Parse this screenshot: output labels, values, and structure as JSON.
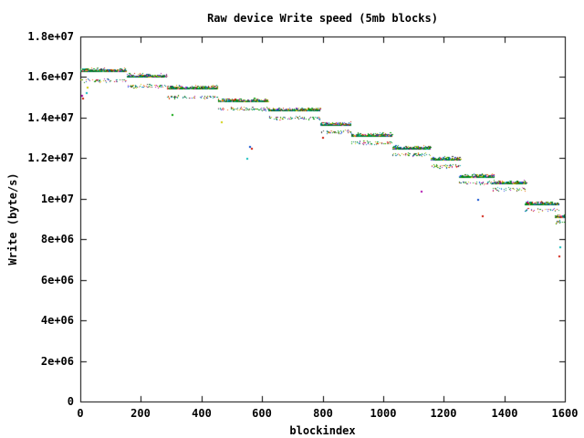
{
  "chart_data": {
    "type": "scatter",
    "title": "Raw device Write speed (5mb blocks)",
    "xlabel": "blockindex",
    "ylabel": "Write (byte/s)",
    "xlim": [
      0,
      1600
    ],
    "ylim": [
      0,
      18000000
    ],
    "grid": false,
    "legend": "none",
    "frame_color": "#000000",
    "band_core_color": "#007d3c",
    "point_colors": [
      "#007a00",
      "#00a000",
      "#009660",
      "#007878",
      "#0044cc",
      "#3355ee",
      "#cc1100",
      "#ee6600",
      "#bbaa00",
      "#cccc00",
      "#00b8b8",
      "#aa00aa",
      "#ff66aa",
      "#303030",
      "#00a000",
      "#007a00"
    ],
    "x_ticks": [
      {
        "value": 0,
        "label": "0"
      },
      {
        "value": 200,
        "label": "200"
      },
      {
        "value": 400,
        "label": "400"
      },
      {
        "value": 600,
        "label": "600"
      },
      {
        "value": 800,
        "label": "800"
      },
      {
        "value": 1000,
        "label": "1000"
      },
      {
        "value": 1200,
        "label": "1200"
      },
      {
        "value": 1400,
        "label": "1400"
      },
      {
        "value": 1600,
        "label": "1600"
      }
    ],
    "y_ticks": [
      {
        "value": 0,
        "label": "0"
      },
      {
        "value": 2000000,
        "label": "2e+06"
      },
      {
        "value": 4000000,
        "label": "4e+06"
      },
      {
        "value": 6000000,
        "label": "6e+06"
      },
      {
        "value": 8000000,
        "label": "8e+06"
      },
      {
        "value": 10000000,
        "label": "1e+07"
      },
      {
        "value": 12000000,
        "label": "1.2e+07"
      },
      {
        "value": 14000000,
        "label": "1.4e+07"
      },
      {
        "value": 16000000,
        "label": "1.6e+07"
      },
      {
        "value": 18000000,
        "label": "1.8e+07"
      }
    ],
    "steps": [
      {
        "x_start": 0,
        "x_end": 153,
        "main_speed": 16350000,
        "secondary_speed": 15850000
      },
      {
        "x_start": 153,
        "x_end": 286,
        "main_speed": 16050000,
        "secondary_speed": 15550000
      },
      {
        "x_start": 286,
        "x_end": 454,
        "main_speed": 15480000,
        "secondary_speed": 15050000
      },
      {
        "x_start": 454,
        "x_end": 620,
        "main_speed": 14830000,
        "secondary_speed": 14450000
      },
      {
        "x_start": 620,
        "x_end": 791,
        "main_speed": 14380000,
        "secondary_speed": 13980000
      },
      {
        "x_start": 791,
        "x_end": 896,
        "main_speed": 13700000,
        "secondary_speed": 13330000
      },
      {
        "x_start": 896,
        "x_end": 1032,
        "main_speed": 13130000,
        "secondary_speed": 12800000
      },
      {
        "x_start": 1032,
        "x_end": 1158,
        "main_speed": 12520000,
        "secondary_speed": 12180000
      },
      {
        "x_start": 1158,
        "x_end": 1257,
        "main_speed": 11950000,
        "secondary_speed": 11630000
      },
      {
        "x_start": 1251,
        "x_end": 1369,
        "main_speed": 11130000,
        "secondary_speed": 10820000
      },
      {
        "x_start": 1363,
        "x_end": 1474,
        "main_speed": 10780000,
        "secondary_speed": 10470000
      },
      {
        "x_start": 1468,
        "x_end": 1582,
        "main_speed": 9780000,
        "secondary_speed": 9450000
      },
      {
        "x_start": 1567,
        "x_end": 1600,
        "main_speed": 9150000,
        "secondary_speed": 8850000
      }
    ],
    "outliers": [
      {
        "x": 2,
        "y": 15100000,
        "color": "#aa00aa"
      },
      {
        "x": 18,
        "y": 15270000,
        "color": "#00b8b8"
      },
      {
        "x": 6,
        "y": 14980000,
        "color": "#cc1100"
      },
      {
        "x": 20,
        "y": 15520000,
        "color": "#cccc00"
      },
      {
        "x": 300,
        "y": 14170000,
        "color": "#00a000"
      },
      {
        "x": 464,
        "y": 13800000,
        "color": "#cccc00"
      },
      {
        "x": 548,
        "y": 12000000,
        "color": "#00b8b8"
      },
      {
        "x": 557,
        "y": 12600000,
        "color": "#0044cc"
      },
      {
        "x": 562,
        "y": 12520000,
        "color": "#cc1100"
      },
      {
        "x": 798,
        "y": 13050000,
        "color": "#cc1100"
      },
      {
        "x": 1125,
        "y": 10380000,
        "color": "#aa00aa"
      },
      {
        "x": 1311,
        "y": 9970000,
        "color": "#0044cc"
      },
      {
        "x": 1326,
        "y": 9160000,
        "color": "#cc1100"
      },
      {
        "x": 1582,
        "y": 7640000,
        "color": "#00b8b8"
      },
      {
        "x": 1579,
        "y": 7190000,
        "color": "#cc1100"
      }
    ]
  }
}
